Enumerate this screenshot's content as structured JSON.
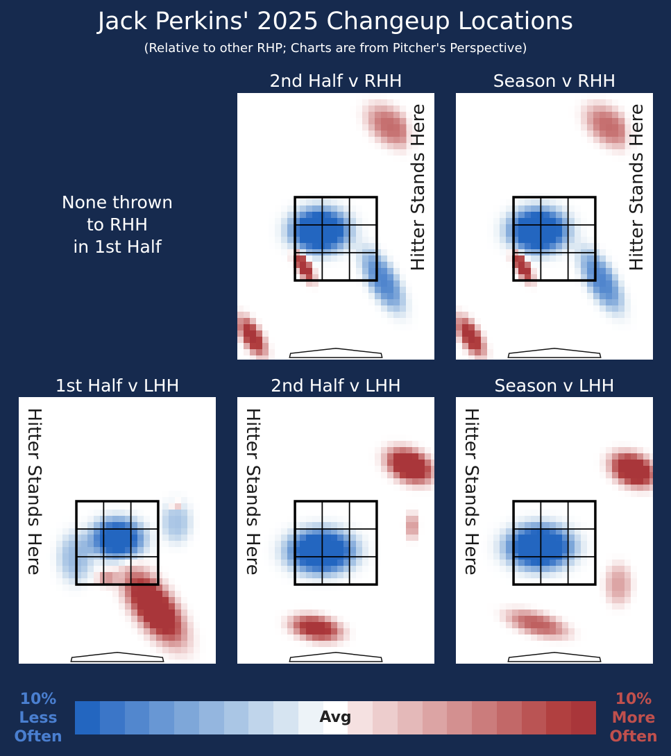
{
  "header": {
    "title": "Jack Perkins' 2025 Changeup Locations",
    "subtitle": "(Relative to other RHP; Charts are from Pitcher's Perspective)"
  },
  "empty_panel": {
    "lines": [
      "None thrown",
      "to RHH",
      "in 1st Half"
    ]
  },
  "legend": {
    "less": [
      "10%",
      "Less",
      "Often"
    ],
    "more": [
      "10%",
      "More",
      "Often"
    ],
    "center": "Avg",
    "scale_min": -10,
    "scale_max": 10,
    "colors": [
      "#2366c0",
      "#3b76c8",
      "#5287ce",
      "#6897d4",
      "#7ea7d9",
      "#94b6df",
      "#aac6e5",
      "#c0d5eb",
      "#d6e4f1",
      "#edf3f8",
      "#ffffff",
      "#f5e1e1",
      "#edcdcd",
      "#e4b9b9",
      "#dca4a4",
      "#d39090",
      "#cb7c7c",
      "#c26868",
      "#ba5454",
      "#b14040",
      "#a9363a"
    ]
  },
  "chart_data": [
    {
      "type": "heatmap",
      "title": "2nd Half v RHH",
      "hitter_label": "Hitter Stands Here",
      "hitter_side": "right",
      "blobs": [
        {
          "kind": "more",
          "dx": -0.66,
          "dy": -0.66,
          "ex": 0.38,
          "ey": 0.14,
          "rot": -65,
          "w": 0.95
        },
        {
          "kind": "more",
          "dx": -1.7,
          "dy": -2.35,
          "ex": 0.2,
          "ey": 0.5,
          "rot": 25,
          "w": 0.8
        },
        {
          "kind": "more",
          "dx": 1.1,
          "dy": 2.7,
          "ex": 0.55,
          "ey": 0.35,
          "rot": -50,
          "w": 0.5
        },
        {
          "kind": "less",
          "dx": -0.33,
          "dy": 0.2,
          "ex": 0.62,
          "ey": 0.55,
          "rot": 0,
          "w": 1.0
        },
        {
          "kind": "less",
          "dx": 0.95,
          "dy": -1.0,
          "ex": 0.3,
          "ey": 0.8,
          "rot": 25,
          "w": 0.6
        }
      ]
    },
    {
      "type": "heatmap",
      "title": "Season v RHH",
      "hitter_label": "Hitter Stands Here",
      "hitter_side": "right",
      "blobs": [
        {
          "kind": "more",
          "dx": -0.66,
          "dy": -0.66,
          "ex": 0.38,
          "ey": 0.14,
          "rot": -65,
          "w": 0.95
        },
        {
          "kind": "more",
          "dx": -1.7,
          "dy": -2.35,
          "ex": 0.2,
          "ey": 0.5,
          "rot": 25,
          "w": 0.8
        },
        {
          "kind": "more",
          "dx": 1.1,
          "dy": 2.7,
          "ex": 0.55,
          "ey": 0.35,
          "rot": -50,
          "w": 0.5
        },
        {
          "kind": "less",
          "dx": -0.33,
          "dy": 0.2,
          "ex": 0.62,
          "ey": 0.55,
          "rot": 0,
          "w": 1.0
        },
        {
          "kind": "less",
          "dx": 0.95,
          "dy": -1.0,
          "ex": 0.3,
          "ey": 0.8,
          "rot": 25,
          "w": 0.6
        }
      ]
    },
    {
      "type": "heatmap",
      "title": "1st Half v LHH",
      "hitter_label": "Hitter Stands Here",
      "hitter_side": "left",
      "blobs": [
        {
          "kind": "less",
          "dx": 0.0,
          "dy": 0.1,
          "ex": 0.55,
          "ey": 0.5,
          "rot": 0,
          "w": 0.9
        },
        {
          "kind": "less",
          "dx": -0.85,
          "dy": -0.35,
          "ex": 0.35,
          "ey": 0.6,
          "rot": 0,
          "w": 0.35
        },
        {
          "kind": "less",
          "dx": 1.2,
          "dy": 0.5,
          "ex": 0.3,
          "ey": 0.5,
          "rot": 0,
          "w": 0.3
        },
        {
          "kind": "more",
          "dx": 0.75,
          "dy": -1.55,
          "ex": 0.4,
          "ey": 0.95,
          "rot": 30,
          "w": 1.0
        },
        {
          "kind": "more",
          "dx": -0.2,
          "dy": -0.85,
          "ex": 0.2,
          "ey": 0.18,
          "rot": 0,
          "w": 0.35
        },
        {
          "kind": "more",
          "dx": 1.2,
          "dy": 0.9,
          "ex": 0.12,
          "ey": 0.12,
          "rot": 0,
          "w": 0.35
        }
      ]
    },
    {
      "type": "heatmap",
      "title": "2nd Half v LHH",
      "hitter_label": "Hitter Stands Here",
      "hitter_side": "left",
      "blobs": [
        {
          "kind": "less",
          "dx": -0.3,
          "dy": -0.2,
          "ex": 0.7,
          "ey": 0.55,
          "rot": 0,
          "w": 1.0
        },
        {
          "kind": "more",
          "dx": 1.5,
          "dy": 1.85,
          "ex": 0.5,
          "ey": 0.35,
          "rot": -35,
          "w": 1.0
        },
        {
          "kind": "more",
          "dx": -0.4,
          "dy": -2.05,
          "ex": 0.5,
          "ey": 0.28,
          "rot": -15,
          "w": 0.8
        },
        {
          "kind": "more",
          "dx": 1.55,
          "dy": 0.4,
          "ex": 0.12,
          "ey": 0.3,
          "rot": 0,
          "w": 0.35
        }
      ]
    },
    {
      "type": "heatmap",
      "title": "Season v LHH",
      "hitter_label": "Hitter Stands Here",
      "hitter_side": "left",
      "blobs": [
        {
          "kind": "less",
          "dx": -0.3,
          "dy": -0.1,
          "ex": 0.7,
          "ey": 0.55,
          "rot": 0,
          "w": 1.0
        },
        {
          "kind": "more",
          "dx": 1.6,
          "dy": 1.75,
          "ex": 0.48,
          "ey": 0.35,
          "rot": -35,
          "w": 1.0
        },
        {
          "kind": "more",
          "dx": -0.35,
          "dy": -1.95,
          "ex": 0.6,
          "ey": 0.25,
          "rot": -20,
          "w": 0.55
        },
        {
          "kind": "more",
          "dx": 1.3,
          "dy": -1.0,
          "ex": 0.25,
          "ey": 0.45,
          "rot": 0,
          "w": 0.3
        }
      ]
    }
  ]
}
